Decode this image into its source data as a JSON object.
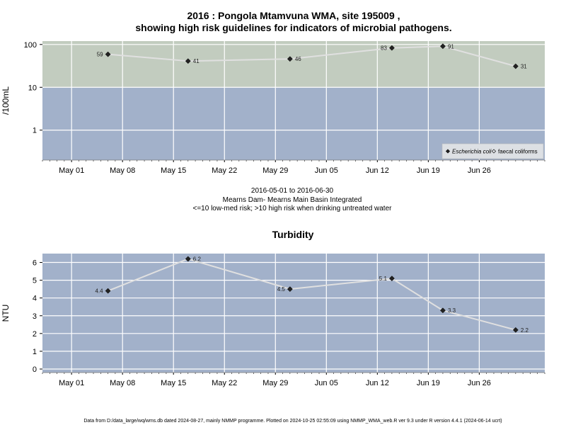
{
  "title": "2016 : Pongola Mtamvuna WMA, site 195009 ,",
  "subtitle": "showing high risk guidelines for indicators of microbial pathogens.",
  "caption": {
    "date_range": "2016-05-01 to 2016-06-30",
    "site": "Mearns Dam- Mearns Main Basin Integrated",
    "risk_note": "<=10 low-med risk; >10 high risk when drinking untreated water"
  },
  "footer": "Data from D:/data_large/wq/wms.db dated 2024-08-27, mainly NMMP programme. Plotted on 2024-10-25 02:55:09 using NMMP_WMA_web.R ver 9.3 under R version 4.4.1 (2024-06-14 ucrt)",
  "colors": {
    "high_risk_band": "#c2ccbf",
    "low_risk_band": "#a2b1ca",
    "series_line": "#e0e0e0",
    "marker": "#222222",
    "grid": "#ffffff"
  },
  "chart_data": [
    {
      "type": "line",
      "title": "",
      "xlabel": "",
      "ylabel": "/100mL",
      "y_scale": "log",
      "ylim": [
        0.2,
        120
      ],
      "y_ticks": [
        1,
        10,
        100
      ],
      "y_tick_labels": [
        "1",
        "10",
        "100"
      ],
      "x_range": [
        "2016-04-27",
        "2016-07-05"
      ],
      "x_ticks": [
        "2016-05-01",
        "2016-05-08",
        "2016-05-15",
        "2016-05-22",
        "2016-05-29",
        "2016-06-05",
        "2016-06-12",
        "2016-06-19",
        "2016-06-26"
      ],
      "x_tick_labels": [
        "May 01",
        "May 08",
        "May 15",
        "May 22",
        "May 29",
        "Jun 05",
        "Jun 12",
        "Jun 19",
        "Jun 26"
      ],
      "threshold": 10,
      "bands": [
        {
          "from": 10,
          "to": 120,
          "meaning": "high risk"
        },
        {
          "from": 0.2,
          "to": 10,
          "meaning": "low-med risk"
        }
      ],
      "grid": true,
      "legend_position": "bottom-right",
      "legend": [
        {
          "label": "Escherichia coli",
          "marker": "filled-diamond",
          "italic": true
        },
        {
          "label": "faecal coliforms",
          "marker": "open-diamond",
          "italic": false
        }
      ],
      "series": [
        {
          "name": "Escherichia coli",
          "x": [
            "2016-05-06",
            "2016-05-17",
            "2016-05-31",
            "2016-06-14",
            "2016-06-21",
            "2016-07-01"
          ],
          "values": [
            59,
            41,
            46,
            83,
            91,
            31
          ],
          "labels": [
            "59",
            "41",
            "46",
            "83",
            "91",
            "31"
          ],
          "label_side": [
            "left",
            "right",
            "right",
            "left",
            "right",
            "right"
          ]
        }
      ]
    },
    {
      "type": "line",
      "title": "Turbidity",
      "xlabel": "",
      "ylabel": "NTU",
      "y_scale": "linear",
      "ylim": [
        -0.2,
        6.5
      ],
      "y_ticks": [
        0,
        1,
        2,
        3,
        4,
        5,
        6
      ],
      "y_tick_labels": [
        "0",
        "1",
        "2",
        "3",
        "4",
        "5",
        "6"
      ],
      "x_range": [
        "2016-04-27",
        "2016-07-05"
      ],
      "x_ticks": [
        "2016-05-01",
        "2016-05-08",
        "2016-05-15",
        "2016-05-22",
        "2016-05-29",
        "2016-06-05",
        "2016-06-12",
        "2016-06-19",
        "2016-06-26"
      ],
      "x_tick_labels": [
        "May 01",
        "May 08",
        "May 15",
        "May 22",
        "May 29",
        "Jun 05",
        "Jun 12",
        "Jun 19",
        "Jun 26"
      ],
      "grid": true,
      "series": [
        {
          "name": "",
          "x": [
            "2016-05-06",
            "2016-05-17",
            "2016-05-31",
            "2016-06-14",
            "2016-06-21",
            "2016-07-01"
          ],
          "values": [
            4.4,
            6.2,
            4.5,
            5.1,
            3.3,
            2.2
          ],
          "labels": [
            "4.4",
            "6.2",
            "4.5",
            "5.1",
            "3.3",
            "2.2"
          ],
          "label_side": [
            "left",
            "right",
            "left",
            "left",
            "right",
            "right"
          ]
        }
      ]
    }
  ]
}
